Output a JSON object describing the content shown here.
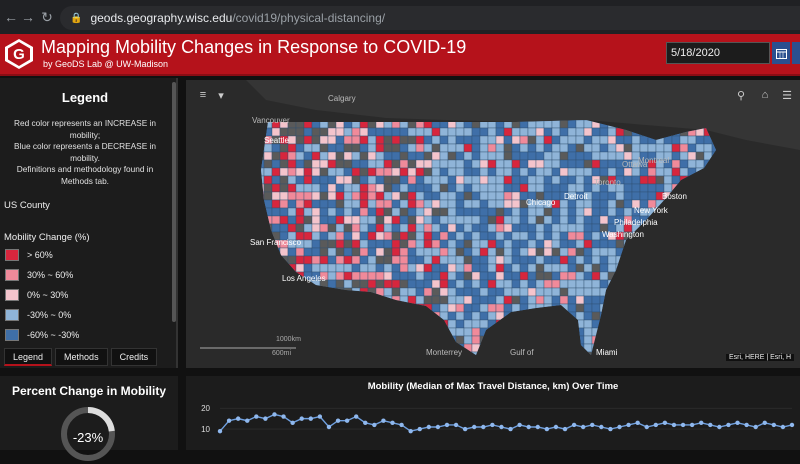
{
  "browser": {
    "url_host": "geods.geography.wisc.edu",
    "url_path": "/covid19/physical-distancing/"
  },
  "header": {
    "logo_letter": "G",
    "title": "Mapping Mobility Changes in Response to COVID-19",
    "subtitle": "by GeoDS Lab @ UW-Madison",
    "date_value": "5/18/2020"
  },
  "legend": {
    "title": "Legend",
    "description": "Red color represents an INCREASE in mobility;\nBlue color represents a DECREASE in mobility.\nDefinitions and methodology found in Methods tab.",
    "layer_name": "US County",
    "field_name": "Mobility Change (%)",
    "classes": [
      {
        "label": "> 60%",
        "color": "#d7263d"
      },
      {
        "label": "30% ~ 60%",
        "color": "#f08a9a"
      },
      {
        "label": "0% ~ 30%",
        "color": "#f4c4cc"
      },
      {
        "label": "-30% ~ 0%",
        "color": "#8fb4d8"
      },
      {
        "label": "-60% ~ -30%",
        "color": "#3f6fa8"
      }
    ],
    "tabs": [
      "Legend",
      "Methods",
      "Credits"
    ]
  },
  "map": {
    "labels": {
      "calgary": "Calgary",
      "vancouver": "Vancouver",
      "seattle": "Seattle",
      "ottawa": "Ottawa",
      "montreal": "Montreal",
      "toronto": "Toronto",
      "detroit": "Detroit",
      "chicago": "Chicago",
      "boston": "Boston",
      "new_york": "New York",
      "philadelphia": "Philadelphia",
      "washington": "Washington",
      "san_francisco": "San Francisco",
      "los_angeles": "Los Angeles",
      "monterrey": "Monterrey",
      "gulf": "Gulf of",
      "miami": "Miami"
    },
    "scale_km": "1000km",
    "scale_mi": "600mi",
    "attribution": "Esri, HERE | Esri, H"
  },
  "summary": {
    "title": "Percent Change in Mobility",
    "value": "-23%",
    "fraction": 0.23
  },
  "chart_data": {
    "type": "line",
    "title": "Mobility (Median of Max Travel Distance, km) Over Time",
    "ylim": [
      0,
      22
    ],
    "yticks": [
      10,
      20
    ],
    "series": [
      {
        "values": [
          9,
          14,
          15,
          14,
          16,
          15,
          17,
          16,
          13,
          15,
          15,
          16,
          11,
          14,
          14,
          16,
          13,
          12,
          14,
          13,
          12,
          9,
          10,
          11,
          11,
          12,
          12,
          10,
          11,
          11,
          12,
          11,
          10,
          12,
          11,
          11,
          10,
          11,
          10,
          12,
          11,
          12,
          11,
          10,
          11,
          12,
          13,
          11,
          12,
          13,
          12,
          12,
          12,
          13,
          12,
          11,
          12,
          13,
          12,
          11,
          13,
          12,
          11,
          12
        ]
      }
    ]
  }
}
